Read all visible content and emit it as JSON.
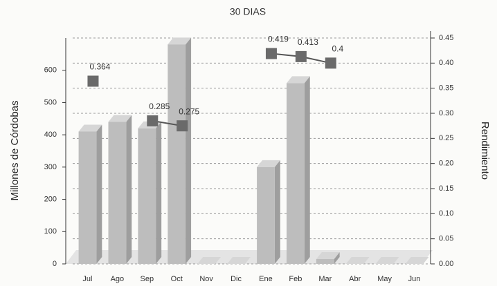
{
  "chart_data": {
    "type": "bar",
    "title": "30 DIAS",
    "categories": [
      "Jul",
      "Ago",
      "Sep",
      "Oct",
      "Nov",
      "Dic",
      "Ene",
      "Feb",
      "Mar",
      "Abr",
      "May",
      "Jun"
    ],
    "series": [
      {
        "name": "Millones de Córdobas",
        "type": "bar",
        "color": "#bdbdbd",
        "values": [
          410,
          440,
          420,
          680,
          0,
          0,
          300,
          560,
          15,
          0,
          0,
          0
        ]
      },
      {
        "name": "Rendimiento",
        "type": "line",
        "axis": "y2",
        "color": "#555555",
        "values": [
          0.364,
          null,
          0.285,
          0.275,
          null,
          null,
          0.419,
          0.413,
          0.4,
          null,
          null,
          null
        ]
      }
    ],
    "ylabel": "Millones de Córdobas",
    "y2label": "Rendimiento",
    "ylim": [
      0,
      700
    ],
    "yticks": [
      0,
      100,
      200,
      300,
      400,
      500,
      600
    ],
    "y2lim": [
      0,
      0.45
    ],
    "y2ticks": [
      {
        "value": 0,
        "label": "0.00"
      },
      {
        "value": 0.05,
        "label": "0.05"
      },
      {
        "value": 0.1,
        "label": "0.10"
      },
      {
        "value": 0.15,
        "label": "0.15"
      },
      {
        "value": 0.2,
        "label": "0.20"
      },
      {
        "value": 0.25,
        "label": "0.25"
      },
      {
        "value": 0.3,
        "label": "0.30"
      },
      {
        "value": 0.35,
        "label": "0.35"
      },
      {
        "value": 0.4,
        "label": "0.40"
      },
      {
        "value": 0.45,
        "label": "0.45"
      }
    ],
    "grid": true
  }
}
